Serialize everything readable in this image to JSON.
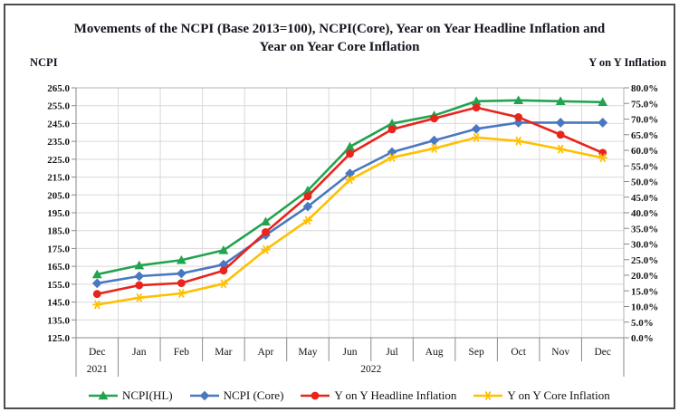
{
  "chart_data": {
    "type": "line",
    "title": "Movements of the NCPI (Base 2013=100), NCPI(Core), Year on Year Headline Inflation and Year on Year Core Inflation",
    "left_axis": {
      "title": "NCPI",
      "min": 125.0,
      "max": 265.0,
      "step": 10.0,
      "ticks": [
        "265.0",
        "255.0",
        "245.0",
        "235.0",
        "225.0",
        "215.0",
        "205.0",
        "195.0",
        "185.0",
        "175.0",
        "165.0",
        "155.0",
        "145.0",
        "135.0",
        "125.0"
      ]
    },
    "right_axis": {
      "title": "Y on Y Inflation",
      "min": 0.0,
      "max": 80.0,
      "step": 5.0,
      "ticks": [
        "80.0%",
        "75.0%",
        "70.0%",
        "65.0%",
        "60.0%",
        "55.0%",
        "50.0%",
        "45.0%",
        "40.0%",
        "35.0%",
        "30.0%",
        "25.0%",
        "20.0%",
        "15.0%",
        "10.0%",
        "5.0%",
        "0.0%"
      ]
    },
    "categories": [
      "Dec",
      "Jan",
      "Feb",
      "Mar",
      "Apr",
      "May",
      "Jun",
      "Jul",
      "Aug",
      "Sep",
      "Oct",
      "Nov",
      "Dec"
    ],
    "year_groups": [
      {
        "label": "2021",
        "span": 1
      },
      {
        "label": "2022",
        "span": 12
      }
    ],
    "grid": true,
    "legend_position": "bottom",
    "series": [
      {
        "name": "NCPI(HL)",
        "axis": "left",
        "marker": "triangle",
        "color": "#22a34f",
        "values": [
          160.5,
          165.5,
          168.5,
          174.0,
          190.0,
          207.5,
          232.0,
          245.0,
          249.5,
          257.5,
          258.0,
          257.5,
          257.0
        ]
      },
      {
        "name": "NCPI (Core)",
        "axis": "left",
        "marker": "diamond",
        "color": "#4a78c0",
        "values": [
          155.5,
          159.5,
          161.0,
          166.0,
          182.5,
          198.5,
          217.0,
          229.0,
          235.5,
          242.0,
          245.5,
          245.5,
          245.5
        ]
      },
      {
        "name": "Y on Y Headline Inflation",
        "axis": "right",
        "marker": "circle",
        "color": "#e8241c",
        "values": [
          14.0,
          16.8,
          17.5,
          21.5,
          33.8,
          45.3,
          58.9,
          66.7,
          70.2,
          73.7,
          70.6,
          65.0,
          59.2
        ]
      },
      {
        "name": "Y on Y Core Inflation",
        "axis": "right",
        "marker": "star",
        "color": "#ffc000",
        "values": [
          10.6,
          12.8,
          14.2,
          17.3,
          28.2,
          37.6,
          50.6,
          57.7,
          60.6,
          64.1,
          63.0,
          60.4,
          57.6
        ]
      }
    ],
    "colors": {
      "gridline": "#d9d9d9",
      "plot_border": "#b3b3b3",
      "axis_line": "#8a8a8a",
      "frame_border": "#4d4d4d"
    }
  }
}
